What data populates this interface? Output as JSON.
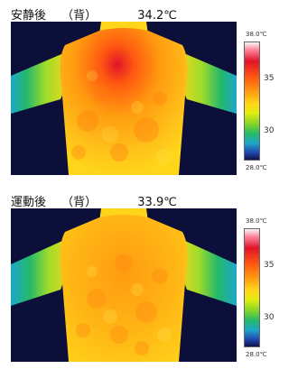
{
  "panels": [
    {
      "state": "安静後",
      "view": "（背）",
      "temperature": "34.2℃",
      "scale": {
        "max": "38.0℃",
        "t35": "35",
        "t30": "30",
        "min": "28.0℃"
      }
    },
    {
      "state": "運動後",
      "view": "（背）",
      "temperature": "33.9℃",
      "scale": {
        "max": "38.0℃",
        "t35": "35",
        "t30": "30",
        "min": "28.0℃"
      }
    }
  ],
  "colors": {
    "background": "#0b0f3a",
    "hot": "#e0142a",
    "warm": "#ff9b10",
    "mid": "#ffd51a",
    "cool": "#24b86a",
    "cold": "#1da8c8"
  }
}
